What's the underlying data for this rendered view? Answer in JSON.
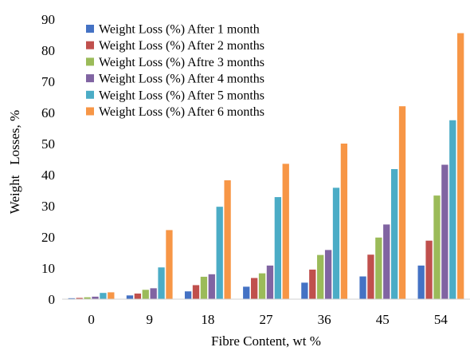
{
  "chart_data": {
    "type": "bar",
    "title": "",
    "xlabel": "Fibre Content, wt %",
    "ylabel": "Weight   Losses, %",
    "categories": [
      "0",
      "9",
      "18",
      "27",
      "36",
      "45",
      "54"
    ],
    "ylim": [
      0,
      90
    ],
    "yticks": [
      0,
      10,
      20,
      30,
      40,
      50,
      60,
      70,
      80,
      90
    ],
    "grid": false,
    "legend_position": "top-left",
    "series": [
      {
        "name": "Weight Loss (%) After 1 month",
        "color": "#4472C4",
        "values": [
          0.3,
          1.2,
          2.5,
          4.0,
          5.3,
          7.3,
          10.8
        ]
      },
      {
        "name": "Weight Loss (%) After 2 months",
        "color": "#C0504D",
        "values": [
          0.4,
          1.8,
          4.5,
          6.8,
          9.5,
          14.3,
          18.8
        ]
      },
      {
        "name": "Weight Loss (%) Aftre 3 months",
        "color": "#9BBB59",
        "values": [
          0.6,
          3.0,
          7.2,
          8.3,
          14.2,
          19.8,
          33.3
        ]
      },
      {
        "name": "Weight Loss (%) After 4 months",
        "color": "#8064A2",
        "values": [
          0.8,
          3.5,
          8.0,
          10.8,
          15.8,
          24.0,
          43.2
        ]
      },
      {
        "name": "Weight Loss (%) After 5 months",
        "color": "#4BACC6",
        "values": [
          2.0,
          10.2,
          29.7,
          32.8,
          35.8,
          41.8,
          57.5
        ]
      },
      {
        "name": "Weight Loss (%) After 6 months",
        "color": "#F79646",
        "values": [
          2.2,
          22.2,
          38.2,
          43.5,
          50.0,
          62.0,
          85.5
        ]
      }
    ]
  }
}
